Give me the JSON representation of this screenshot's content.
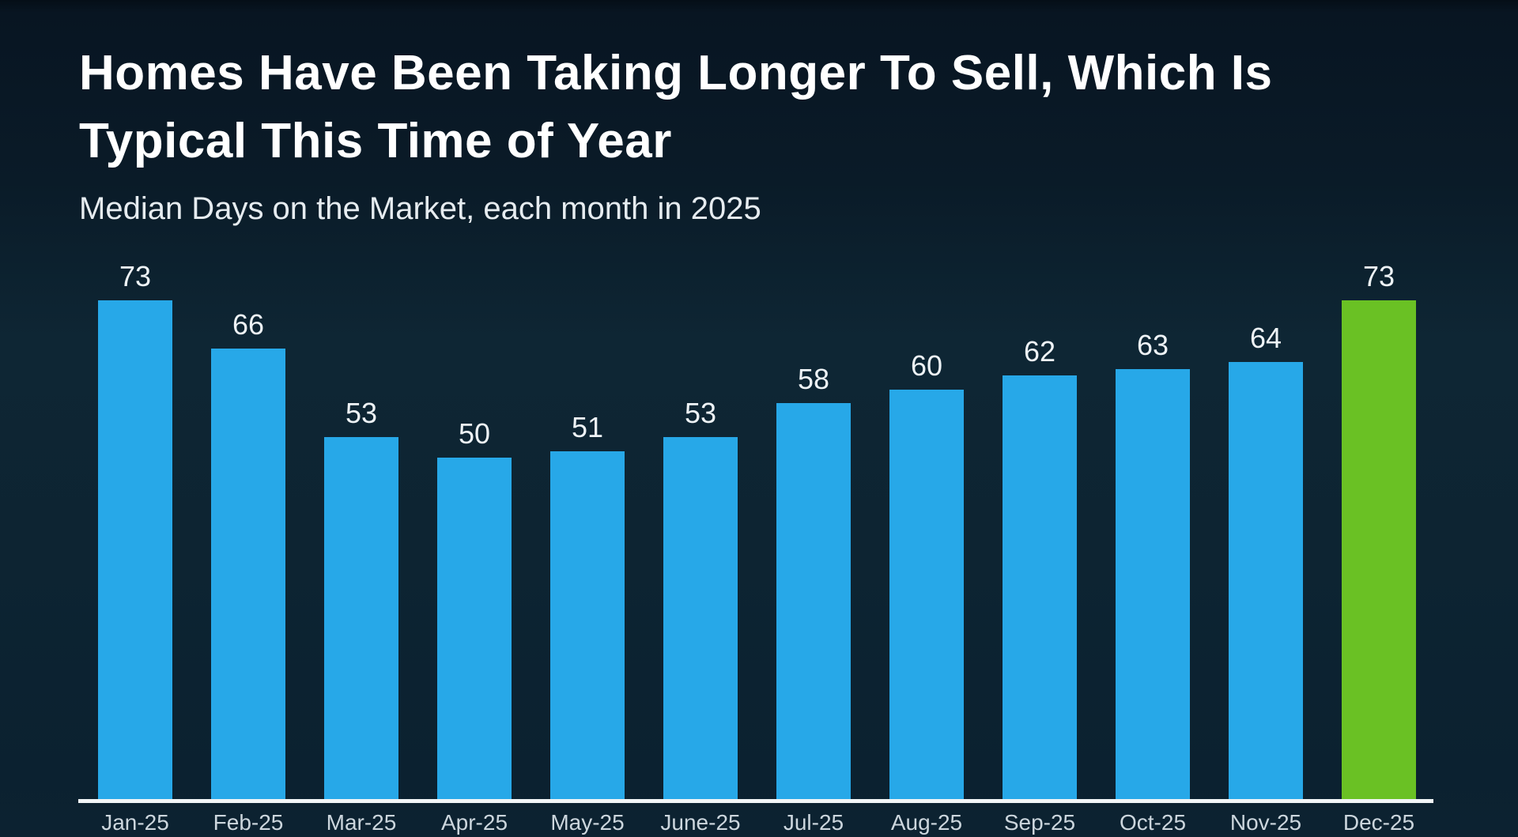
{
  "slide": {
    "title_line1": "Homes Have Been Taking Longer To Sell, Which Is",
    "title_line2": "Typical This Time of Year",
    "subtitle": "Median Days on the Market, each month in 2025"
  },
  "colors": {
    "background": "#0c2231",
    "bar_blue": "#27a8e8",
    "bar_green": "#6ac124",
    "axis_line": "#f2f6f7",
    "title_text": "#ffffff",
    "subtitle_text": "#e6ecf0",
    "value_label_text": "#eef3f6",
    "month_label_text": "#ccd6dd"
  },
  "chart_data": {
    "type": "bar",
    "title": "Homes Have Been Taking Longer To Sell, Which Is Typical This Time of Year",
    "subtitle": "Median Days on the Market, each month in 2025",
    "categories": [
      "Jan-25",
      "Feb-25",
      "Mar-25",
      "Apr-25",
      "May-25",
      "June-25",
      "Jul-25",
      "Aug-25",
      "Sep-25",
      "Oct-25",
      "Nov-25",
      "Dec-25"
    ],
    "values": [
      73,
      66,
      53,
      50,
      51,
      53,
      58,
      60,
      62,
      63,
      64,
      73
    ],
    "highlight_index": 11,
    "bar_color": "#27a8e8",
    "highlight_color": "#6ac124",
    "value_labels_shown": true,
    "grid": false,
    "legend": false,
    "xlabel": "",
    "ylabel": "",
    "ylim": [
      0,
      78
    ]
  }
}
